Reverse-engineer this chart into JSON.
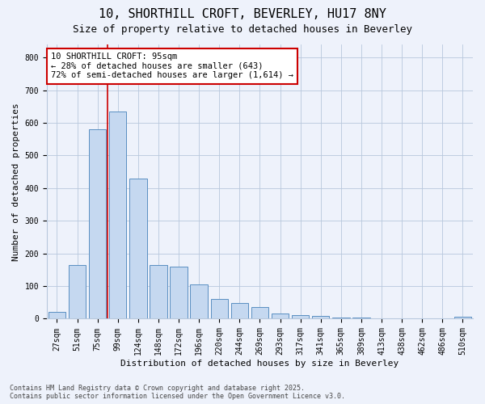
{
  "title_line1": "10, SHORTHILL CROFT, BEVERLEY, HU17 8NY",
  "title_line2": "Size of property relative to detached houses in Beverley",
  "xlabel": "Distribution of detached houses by size in Beverley",
  "ylabel": "Number of detached properties",
  "categories": [
    "27sqm",
    "51sqm",
    "75sqm",
    "99sqm",
    "124sqm",
    "148sqm",
    "172sqm",
    "196sqm",
    "220sqm",
    "244sqm",
    "269sqm",
    "293sqm",
    "317sqm",
    "341sqm",
    "365sqm",
    "389sqm",
    "413sqm",
    "438sqm",
    "462sqm",
    "486sqm",
    "510sqm"
  ],
  "values": [
    20,
    165,
    580,
    635,
    430,
    165,
    160,
    105,
    60,
    48,
    35,
    15,
    10,
    8,
    4,
    3,
    2,
    1,
    1,
    0,
    5
  ],
  "bar_color": "#c5d8f0",
  "bar_edge_color": "#5a8fc2",
  "vline_x": 2.5,
  "vline_color": "#cc0000",
  "annotation_text": "10 SHORTHILL CROFT: 95sqm\n← 28% of detached houses are smaller (643)\n72% of semi-detached houses are larger (1,614) →",
  "annotation_box_facecolor": "#ffffff",
  "annotation_box_edgecolor": "#cc0000",
  "ylim": [
    0,
    840
  ],
  "yticks": [
    0,
    100,
    200,
    300,
    400,
    500,
    600,
    700,
    800
  ],
  "background_color": "#eef2fb",
  "grid_color": "#b8c8dd",
  "footer_line1": "Contains HM Land Registry data © Crown copyright and database right 2025.",
  "footer_line2": "Contains public sector information licensed under the Open Government Licence v3.0.",
  "title_fontsize": 11,
  "subtitle_fontsize": 9,
  "axis_label_fontsize": 8,
  "tick_fontsize": 7,
  "annotation_fontsize": 7.5,
  "footer_fontsize": 6
}
